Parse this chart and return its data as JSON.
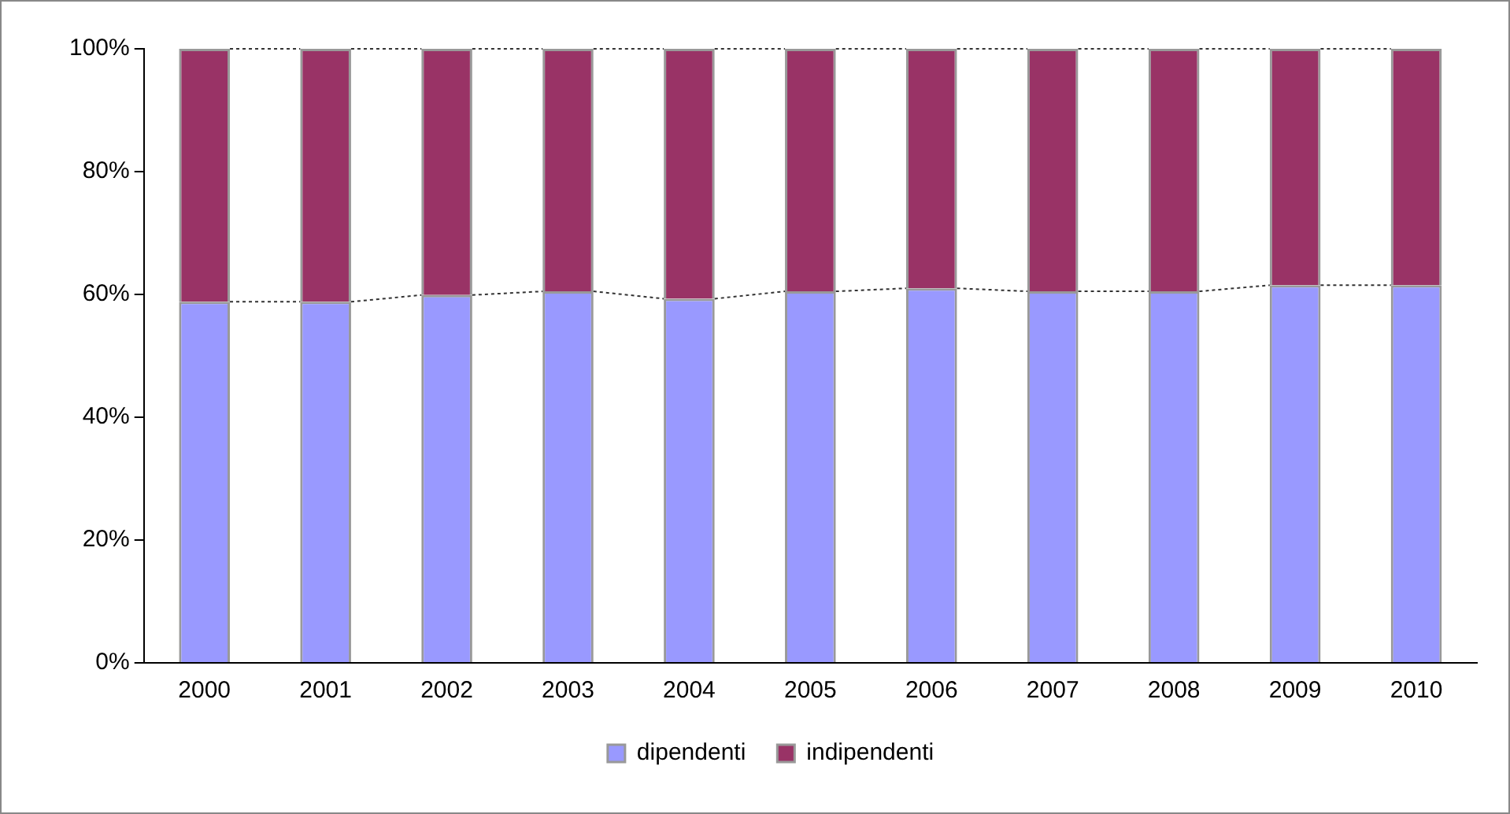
{
  "chart_data": {
    "type": "bar",
    "stacked": true,
    "categories": [
      "2000",
      "2001",
      "2002",
      "2003",
      "2004",
      "2005",
      "2006",
      "2007",
      "2008",
      "2009",
      "2010"
    ],
    "series": [
      {
        "name": "dipendenti",
        "color": "#9999ff",
        "values": [
          58.8,
          58.8,
          59.9,
          60.5,
          59.3,
          60.5,
          61.0,
          60.5,
          60.5,
          61.5,
          61.5
        ]
      },
      {
        "name": "indipendenti",
        "color": "#993366",
        "values": [
          41.2,
          41.2,
          40.1,
          39.5,
          40.7,
          39.5,
          39.0,
          39.5,
          39.5,
          38.5,
          38.5
        ]
      }
    ],
    "ylim": [
      0,
      100
    ],
    "yticks": [
      {
        "value": 0,
        "label": "0%"
      },
      {
        "value": 20,
        "label": "20%"
      },
      {
        "value": 40,
        "label": "40%"
      },
      {
        "value": 60,
        "label": "60%"
      },
      {
        "value": 80,
        "label": "80%"
      },
      {
        "value": 100,
        "label": "100%"
      }
    ],
    "grid": false,
    "legend": "bottom"
  }
}
